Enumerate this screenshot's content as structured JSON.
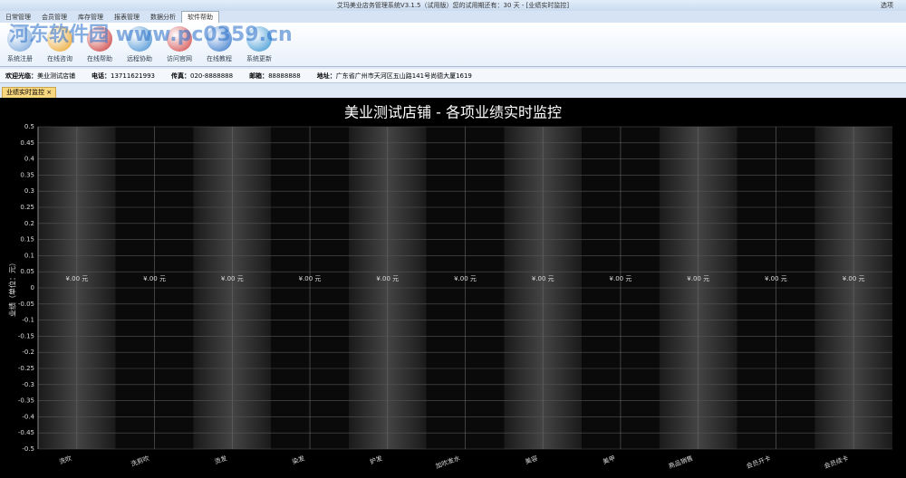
{
  "window": {
    "title": "艾玛美业店务管理系统V3.1.5（试用版）您的试用期还有：30 天 - [业绩实时监控]",
    "options": "选项",
    "watermark": "河东软件园 www.pc0359.cn"
  },
  "menu": {
    "tabs": [
      "日常管理",
      "会员管理",
      "库存管理",
      "报表管理",
      "数据分析",
      "软件帮助"
    ]
  },
  "ribbon": {
    "buttons": [
      "系统注册",
      "在线咨询",
      "在线帮助",
      "远程协助",
      "访问官网",
      "在线教程",
      "系统更新"
    ]
  },
  "info": {
    "items": [
      {
        "label": "欢迎光临：",
        "value": "美业测试店铺"
      },
      {
        "label": "电话：",
        "value": "13711621993"
      },
      {
        "label": "传真：",
        "value": "020-8888888"
      },
      {
        "label": "邮箱：",
        "value": "88888888"
      },
      {
        "label": "地址：",
        "value": "广东省广州市天河区五山路141号尚德大厦1619"
      }
    ]
  },
  "doc_tab": {
    "label": "业绩实时监控",
    "close": "×"
  },
  "chart_data": {
    "type": "bar",
    "title": "美业测试店铺 - 各项业绩实时监控",
    "y_label": "业绩（单位：元）",
    "categories": [
      "洗吹",
      "洗剪吹",
      "烫发",
      "染发",
      "护发",
      "加吹发水",
      "美容",
      "美甲",
      "商品销售",
      "会员开卡",
      "会员续卡"
    ],
    "values": [
      0,
      0,
      0,
      0,
      0,
      0,
      0,
      0,
      0,
      0,
      0
    ],
    "value_labels": [
      "¥.00 元",
      "¥.00 元",
      "¥.00 元",
      "¥.00 元",
      "¥.00 元",
      "¥.00 元",
      "¥.00 元",
      "¥.00 元",
      "¥.00 元",
      "¥.00 元",
      "¥.00 元"
    ],
    "color": "#4a7fc0",
    "ylim": [
      -0.5,
      0.5
    ],
    "yticks": [
      0.5,
      0.45,
      0.4,
      0.35,
      0.3,
      0.25,
      0.2,
      0.15,
      0.1,
      0.05,
      0,
      -0.05,
      -0.1,
      -0.15,
      -0.2,
      -0.25,
      -0.3,
      -0.35,
      -0.4,
      -0.45,
      -0.5
    ],
    "grid": true
  }
}
